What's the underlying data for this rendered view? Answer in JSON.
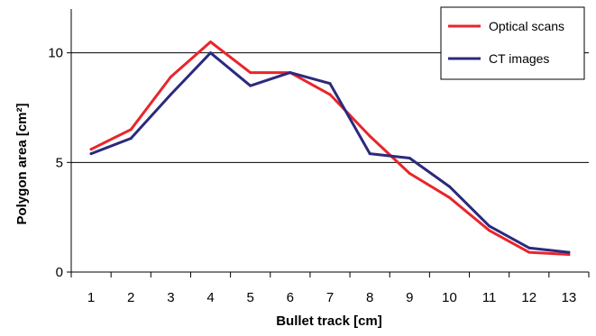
{
  "chart_data": {
    "type": "line",
    "xlabel": "Bullet track [cm]",
    "ylabel": "Polygon area [cm²]",
    "x": [
      1,
      2,
      3,
      4,
      5,
      6,
      7,
      8,
      9,
      10,
      11,
      12,
      13
    ],
    "x_tick_labels": [
      "1",
      "2",
      "3",
      "4",
      "5",
      "6",
      "7",
      "8",
      "9",
      "10",
      "11",
      "12",
      "13"
    ],
    "y_ticks": [
      0,
      5,
      10
    ],
    "y_tick_labels": [
      "0",
      "5",
      "10"
    ],
    "xlim": [
      0.5,
      13.5
    ],
    "ylim": [
      0,
      12
    ],
    "grid": "horizontal major gridlines at 5 and 10",
    "legend_position": "top-right",
    "series": [
      {
        "name": "Optical scans",
        "color": "#e8262b",
        "values": [
          5.6,
          6.5,
          8.9,
          10.5,
          9.1,
          9.1,
          8.1,
          6.2,
          4.5,
          3.4,
          1.9,
          0.9,
          0.8
        ]
      },
      {
        "name": "CT images",
        "color": "#2b2a7d",
        "values": [
          5.4,
          6.1,
          8.1,
          10.0,
          8.5,
          9.1,
          8.6,
          5.4,
          5.2,
          3.9,
          2.1,
          1.1,
          0.9
        ]
      }
    ]
  }
}
